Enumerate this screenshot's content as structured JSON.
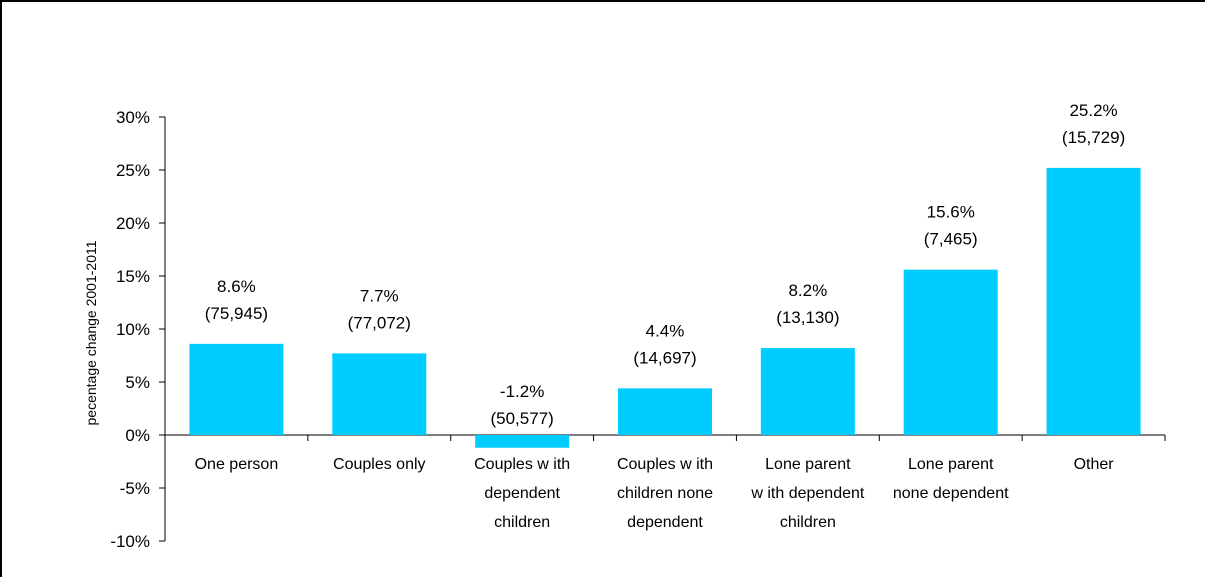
{
  "chart_data": {
    "type": "bar",
    "ylabel": "pecentage change 2001-2011",
    "ylim": [
      -10,
      30
    ],
    "yticks": [
      "30%",
      "25%",
      "20%",
      "15%",
      "10%",
      "5%",
      "0%",
      "-5%",
      "-10%"
    ],
    "ytick_values": [
      30,
      25,
      20,
      15,
      10,
      5,
      0,
      -5,
      -10
    ],
    "bar_color": "#00CCFF",
    "categories": [
      [
        "One person"
      ],
      [
        "Couples only"
      ],
      [
        "Couples w ith",
        "dependent",
        "children"
      ],
      [
        "Couples w ith",
        "children none",
        "dependent"
      ],
      [
        "Lone parent",
        "w ith dependent",
        "children"
      ],
      [
        "Lone parent",
        "none dependent"
      ],
      [
        "Other"
      ]
    ],
    "values": [
      8.6,
      7.7,
      -1.2,
      4.4,
      8.2,
      15.6,
      25.2
    ],
    "labels": [
      "8.6%",
      "7.7%",
      "-1.2%",
      "4.4%",
      "8.2%",
      "15.6%",
      "25.2%"
    ],
    "counts": [
      "(75,945)",
      "(77,072)",
      "(50,577)",
      "(14,697)",
      "(13,130)",
      "(7,465)",
      "(15,729)"
    ],
    "grid": false,
    "legend": "none"
  }
}
